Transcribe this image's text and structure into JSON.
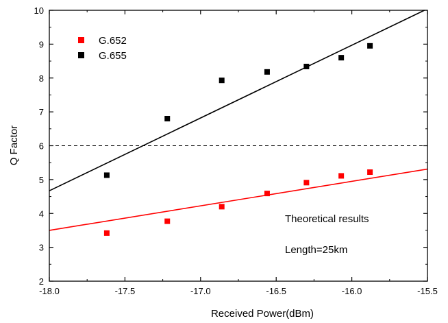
{
  "chart_data": {
    "type": "scatter",
    "xlabel": "Received Power(dBm)",
    "ylabel": "Q Factor",
    "xlim": [
      -18.0,
      -15.5
    ],
    "ylim": [
      2,
      10
    ],
    "x_ticks": [
      -18.0,
      -17.5,
      -17.0,
      -16.5,
      -16.0,
      -15.5
    ],
    "x_tick_labels": [
      "-18.0",
      "-17.5",
      "-17.0",
      "-16.5",
      "-16.0",
      "-15.5"
    ],
    "y_ticks": [
      2,
      3,
      4,
      5,
      6,
      7,
      8,
      9,
      10
    ],
    "y_tick_labels": [
      "2",
      "3",
      "4",
      "5",
      "6",
      "7",
      "8",
      "9",
      "10"
    ],
    "grid": false,
    "legend_position": "top-left",
    "series": [
      {
        "name": "G.652",
        "color": "#ff0000",
        "marker": "square",
        "points": [
          {
            "x": -17.62,
            "y": 3.42
          },
          {
            "x": -17.22,
            "y": 3.77
          },
          {
            "x": -16.86,
            "y": 4.2
          },
          {
            "x": -16.56,
            "y": 4.59
          },
          {
            "x": -16.3,
            "y": 4.91
          },
          {
            "x": -16.07,
            "y": 5.11
          },
          {
            "x": -15.88,
            "y": 5.22
          }
        ],
        "fit_line": {
          "x": [
            -18.0,
            -15.5
          ],
          "y": [
            3.5,
            5.31
          ]
        }
      },
      {
        "name": "G.655",
        "color": "#000000",
        "marker": "square",
        "points": [
          {
            "x": -17.62,
            "y": 5.13
          },
          {
            "x": -17.22,
            "y": 6.8
          },
          {
            "x": -16.86,
            "y": 7.93
          },
          {
            "x": -16.56,
            "y": 8.18
          },
          {
            "x": -16.3,
            "y": 8.34
          },
          {
            "x": -16.07,
            "y": 8.6
          },
          {
            "x": -15.88,
            "y": 8.95
          }
        ],
        "fit_line": {
          "x": [
            -18.0,
            -15.52
          ],
          "y": [
            4.67,
            10.0
          ]
        }
      }
    ],
    "reference_line": {
      "y": 6,
      "style": "dashed",
      "color": "#000000"
    },
    "annotations": [
      "Theoretical results",
      "Length=25km"
    ]
  }
}
